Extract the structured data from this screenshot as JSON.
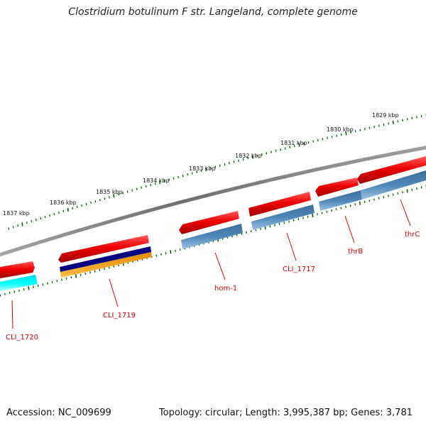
{
  "title": "Clostridium botulinum F str. Langeland, complete genome",
  "footer": {
    "accession": "Accession: NC_009699",
    "summary": "Topology: circular; Length: 3,995,387 bp; Genes: 3,781"
  },
  "ruler": [
    "1837 kbp",
    "1836 kbp",
    "1835 kbp",
    "1834 kbp",
    "1833 kbp",
    "1832 kbp",
    "1831 kbp",
    "1830 kbp",
    "1829 kbp"
  ],
  "genes": [
    "CLI_1720",
    "CLI_1719",
    "hom-1",
    "CLI_1717",
    "thrB",
    "thrC"
  ],
  "colors": {
    "forward": "#ff0000",
    "cds": "#4682b4",
    "cyan": "#00ffff",
    "navy": "#000080",
    "orange": "#ffa500",
    "backbone": "#808080",
    "tick": "#006400",
    "label": "#d40000"
  }
}
